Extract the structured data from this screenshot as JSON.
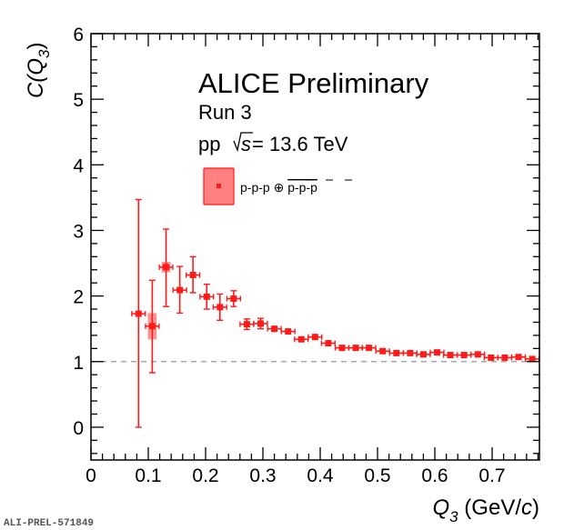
{
  "chart_data": {
    "type": "scatter",
    "title": "",
    "xlabel": "Q",
    "xlabel_sub": "3",
    "xlabel_unit_pre": " (GeV/",
    "xlabel_unit_c": "c",
    "xlabel_unit_post": ")",
    "ylabel": "C(Q",
    "ylabel_sub": "3",
    "ylabel_post": ")",
    "xlim": [
      0,
      0.7825
    ],
    "ylim": [
      -0.5,
      6
    ],
    "x_ticks": [
      0,
      0.1,
      0.2,
      0.3,
      0.4,
      0.5,
      0.6,
      0.7
    ],
    "x_tick_labels": [
      "0",
      "0.1",
      "0.2",
      "0.3",
      "0.4",
      "0.5",
      "0.6",
      "0.7"
    ],
    "y_ticks": [
      0,
      1,
      2,
      3,
      4,
      5,
      6
    ],
    "y_tick_labels": [
      "0",
      "1",
      "2",
      "3",
      "4",
      "5",
      "6"
    ],
    "reference_line": 1,
    "bin_halfwidth": 0.0118,
    "legend_position": "top-center",
    "annotations": {
      "experiment": "ALICE Preliminary",
      "run": "Run 3",
      "system": "pp",
      "sqrt_s": "s",
      "energy": " = 13.6 TeV"
    },
    "series": [
      {
        "name": "p-p-p ⊕ p̅-p̅-p̅",
        "legend_main": "p-p-p ⊕ ",
        "legend_anti": "p-p-p",
        "color": "#ff1a1a",
        "sys_color": "#ff8080",
        "points": [
          {
            "x": 0.083,
            "y": 1.73,
            "stat_lo": 1.73,
            "stat_hi": 1.74,
            "sys": 0.0
          },
          {
            "x": 0.107,
            "y": 1.54,
            "stat_lo": 0.71,
            "stat_hi": 0.7,
            "sys": 0.2
          },
          {
            "x": 0.131,
            "y": 2.44,
            "stat_lo": 0.6,
            "stat_hi": 0.58,
            "sys": 0.08
          },
          {
            "x": 0.155,
            "y": 2.09,
            "stat_lo": 0.35,
            "stat_hi": 0.36,
            "sys": 0.0
          },
          {
            "x": 0.178,
            "y": 2.32,
            "stat_lo": 0.27,
            "stat_hi": 0.28,
            "sys": 0.0
          },
          {
            "x": 0.202,
            "y": 1.99,
            "stat_lo": 0.19,
            "stat_hi": 0.19,
            "sys": 0.0
          },
          {
            "x": 0.225,
            "y": 1.83,
            "stat_lo": 0.2,
            "stat_hi": 0.2,
            "sys": 0.0
          },
          {
            "x": 0.249,
            "y": 1.96,
            "stat_lo": 0.12,
            "stat_hi": 0.12,
            "sys": 0.0
          },
          {
            "x": 0.272,
            "y": 1.57,
            "stat_lo": 0.08,
            "stat_hi": 0.08,
            "sys": 0.0
          },
          {
            "x": 0.296,
            "y": 1.58,
            "stat_lo": 0.08,
            "stat_hi": 0.08,
            "sys": 0.0
          },
          {
            "x": 0.32,
            "y": 1.5,
            "stat_lo": 0.05,
            "stat_hi": 0.05,
            "sys": 0.0
          },
          {
            "x": 0.344,
            "y": 1.46,
            "stat_lo": 0.04,
            "stat_hi": 0.04,
            "sys": 0.0
          },
          {
            "x": 0.367,
            "y": 1.34,
            "stat_lo": 0.03,
            "stat_hi": 0.03,
            "sys": 0.0
          },
          {
            "x": 0.391,
            "y": 1.375,
            "stat_lo": 0.03,
            "stat_hi": 0.03,
            "sys": 0.0
          },
          {
            "x": 0.414,
            "y": 1.28,
            "stat_lo": 0.02,
            "stat_hi": 0.02,
            "sys": 0.0
          },
          {
            "x": 0.438,
            "y": 1.21,
            "stat_lo": 0.02,
            "stat_hi": 0.02,
            "sys": 0.0
          },
          {
            "x": 0.462,
            "y": 1.21,
            "stat_lo": 0.02,
            "stat_hi": 0.02,
            "sys": 0.0
          },
          {
            "x": 0.485,
            "y": 1.21,
            "stat_lo": 0.02,
            "stat_hi": 0.02,
            "sys": 0.0
          },
          {
            "x": 0.509,
            "y": 1.16,
            "stat_lo": 0.02,
            "stat_hi": 0.02,
            "sys": 0.0
          },
          {
            "x": 0.533,
            "y": 1.13,
            "stat_lo": 0.02,
            "stat_hi": 0.02,
            "sys": 0.0
          },
          {
            "x": 0.557,
            "y": 1.13,
            "stat_lo": 0.02,
            "stat_hi": 0.02,
            "sys": 0.0
          },
          {
            "x": 0.58,
            "y": 1.11,
            "stat_lo": 0.02,
            "stat_hi": 0.02,
            "sys": 0.0
          },
          {
            "x": 0.604,
            "y": 1.14,
            "stat_lo": 0.02,
            "stat_hi": 0.02,
            "sys": 0.0
          },
          {
            "x": 0.627,
            "y": 1.1,
            "stat_lo": 0.02,
            "stat_hi": 0.02,
            "sys": 0.0
          },
          {
            "x": 0.651,
            "y": 1.1,
            "stat_lo": 0.02,
            "stat_hi": 0.02,
            "sys": 0.0
          },
          {
            "x": 0.675,
            "y": 1.11,
            "stat_lo": 0.02,
            "stat_hi": 0.02,
            "sys": 0.0
          },
          {
            "x": 0.698,
            "y": 1.06,
            "stat_lo": 0.02,
            "stat_hi": 0.02,
            "sys": 0.0
          },
          {
            "x": 0.722,
            "y": 1.06,
            "stat_lo": 0.02,
            "stat_hi": 0.02,
            "sys": 0.0
          },
          {
            "x": 0.746,
            "y": 1.07,
            "stat_lo": 0.02,
            "stat_hi": 0.02,
            "sys": 0.0
          },
          {
            "x": 0.77,
            "y": 1.04,
            "stat_lo": 0.02,
            "stat_hi": 0.02,
            "sys": 0.0
          }
        ]
      }
    ]
  },
  "figure_id": "ALI-PREL-571849"
}
